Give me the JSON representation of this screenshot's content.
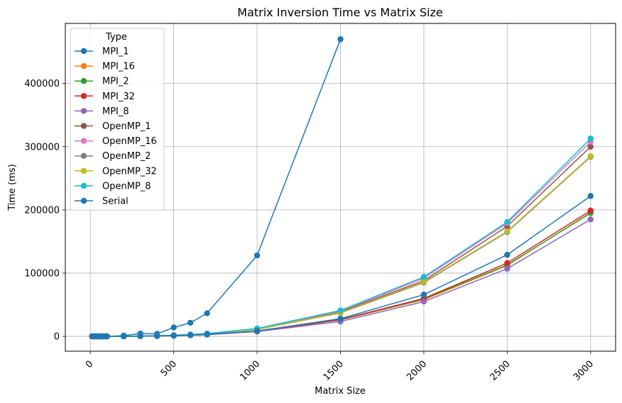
{
  "chart_data": {
    "type": "line",
    "title": "Matrix Inversion Time vs Matrix Size",
    "xlabel": "Matrix Size",
    "ylabel": "Time (ms)",
    "xlim": [
      -150,
      3150
    ],
    "ylim": [
      -23500,
      495000
    ],
    "xticks": [
      0,
      500,
      1000,
      1500,
      2000,
      2500,
      3000
    ],
    "yticks": [
      0,
      100000,
      200000,
      300000,
      400000
    ],
    "grid": true,
    "legend_title": "Type",
    "legend_position": "top-left",
    "series": [
      {
        "name": "MPI_1",
        "color": "#1f77b4",
        "x": [
          10,
          20,
          30,
          40,
          50,
          60,
          70,
          80,
          90,
          100,
          200,
          300,
          400,
          500,
          600,
          700,
          1000,
          1500
        ],
        "y": [
          0,
          0,
          0,
          0,
          0,
          0,
          0,
          0,
          0,
          0,
          1200,
          4500,
          4000,
          14000,
          21500,
          36500,
          128000,
          470000
        ]
      },
      {
        "name": "MPI_16",
        "color": "#ff7f0e",
        "x": [
          10,
          20,
          30,
          40,
          50,
          60,
          70,
          80,
          90,
          100,
          200,
          300,
          400,
          500,
          600,
          700,
          1000,
          1500,
          2000,
          2500,
          3000
        ],
        "y": [
          0,
          0,
          0,
          0,
          0,
          0,
          0,
          0,
          0,
          0,
          100,
          300,
          600,
          1100,
          1800,
          2900,
          8000,
          26000,
          58000,
          112000,
          196000
        ]
      },
      {
        "name": "MPI_2",
        "color": "#2ca02c",
        "x": [
          10,
          20,
          30,
          40,
          50,
          60,
          70,
          80,
          90,
          100,
          200,
          300,
          400,
          500,
          600,
          700,
          1000,
          1500,
          2000,
          2500,
          3000
        ],
        "y": [
          0,
          0,
          0,
          0,
          0,
          0,
          0,
          0,
          0,
          0,
          100,
          300,
          600,
          1100,
          1800,
          2900,
          8000,
          26000,
          59000,
          113000,
          195000
        ]
      },
      {
        "name": "MPI_32",
        "color": "#d62728",
        "x": [
          10,
          20,
          30,
          40,
          50,
          60,
          70,
          80,
          90,
          100,
          200,
          300,
          400,
          500,
          600,
          700,
          1000,
          1500,
          2000,
          2500,
          3000
        ],
        "y": [
          0,
          0,
          0,
          0,
          0,
          0,
          0,
          0,
          0,
          0,
          100,
          300,
          600,
          1100,
          1800,
          2900,
          8000,
          26500,
          60000,
          116000,
          199000
        ]
      },
      {
        "name": "MPI_8",
        "color": "#9467bd",
        "x": [
          10,
          20,
          30,
          40,
          50,
          60,
          70,
          80,
          90,
          100,
          200,
          300,
          400,
          500,
          600,
          700,
          1000,
          1500,
          2000,
          2500,
          3000
        ],
        "y": [
          0,
          0,
          0,
          0,
          0,
          0,
          0,
          0,
          0,
          0,
          100,
          300,
          500,
          1000,
          1700,
          2700,
          7500,
          23500,
          55000,
          107000,
          185000
        ]
      },
      {
        "name": "OpenMP_1",
        "color": "#8c564b",
        "x": [
          10,
          20,
          30,
          40,
          50,
          60,
          70,
          80,
          90,
          100,
          200,
          300,
          400,
          500,
          600,
          700,
          1000,
          1500,
          2000,
          2500,
          3000
        ],
        "y": [
          0,
          0,
          0,
          0,
          0,
          0,
          0,
          0,
          0,
          0,
          200,
          500,
          1000,
          1700,
          2800,
          4200,
          11500,
          39000,
          88000,
          174000,
          300000
        ]
      },
      {
        "name": "OpenMP_16",
        "color": "#e377c2",
        "x": [
          10,
          20,
          30,
          40,
          50,
          60,
          70,
          80,
          90,
          100,
          200,
          300,
          400,
          500,
          600,
          700,
          1000,
          1500,
          2000,
          2500,
          3000
        ],
        "y": [
          0,
          0,
          0,
          0,
          0,
          0,
          0,
          0,
          0,
          0,
          200,
          500,
          1000,
          1800,
          2900,
          4400,
          12000,
          40000,
          92000,
          179000,
          308000
        ]
      },
      {
        "name": "OpenMP_2",
        "color": "#7f7f7f",
        "x": [
          10,
          20,
          30,
          40,
          50,
          60,
          70,
          80,
          90,
          100,
          200,
          300,
          400,
          500,
          600,
          700,
          1000,
          1500,
          2000,
          2500,
          3000
        ],
        "y": [
          0,
          0,
          0,
          0,
          0,
          0,
          0,
          0,
          0,
          0,
          200,
          500,
          900,
          1600,
          2700,
          4000,
          11000,
          37000,
          85000,
          165000,
          284000
        ]
      },
      {
        "name": "OpenMP_32",
        "color": "#bcbd22",
        "x": [
          10,
          20,
          30,
          40,
          50,
          60,
          70,
          80,
          90,
          100,
          200,
          300,
          400,
          500,
          600,
          700,
          1000,
          1500,
          2000,
          2500,
          3000
        ],
        "y": [
          0,
          0,
          0,
          0,
          0,
          0,
          0,
          0,
          0,
          0,
          200,
          500,
          900,
          1600,
          2700,
          4000,
          11000,
          37500,
          86000,
          166000,
          285000
        ]
      },
      {
        "name": "OpenMP_8",
        "color": "#17becf",
        "x": [
          10,
          20,
          30,
          40,
          50,
          60,
          70,
          80,
          90,
          100,
          200,
          300,
          400,
          500,
          600,
          700,
          1000,
          1500,
          2000,
          2500,
          3000
        ],
        "y": [
          0,
          0,
          0,
          0,
          0,
          0,
          0,
          0,
          0,
          0,
          200,
          500,
          1000,
          1800,
          3000,
          4500,
          12500,
          41000,
          94000,
          181000,
          313000
        ]
      },
      {
        "name": "Serial",
        "color": "#1f77b4",
        "x": [
          10,
          20,
          30,
          40,
          50,
          60,
          70,
          80,
          90,
          100,
          200,
          300,
          400,
          500,
          600,
          700,
          1000,
          1500,
          2000,
          2500,
          3000
        ],
        "y": [
          0,
          0,
          0,
          0,
          0,
          0,
          0,
          0,
          0,
          0,
          100,
          300,
          600,
          1200,
          1900,
          3100,
          8500,
          28000,
          66000,
          129000,
          222000
        ]
      }
    ]
  }
}
